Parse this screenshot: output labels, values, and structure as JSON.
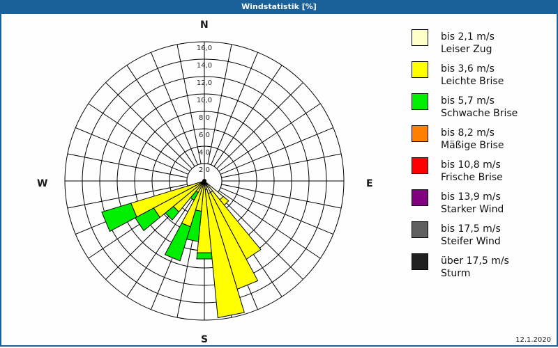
{
  "window": {
    "title": "Windstatistik [%]"
  },
  "footer": {
    "date": "12.1.2020"
  },
  "compass": {
    "n": "N",
    "e": "E",
    "s": "S",
    "w": "W"
  },
  "legend": [
    {
      "range": "bis 2,1 m/s",
      "name": "Leiser Zug",
      "color": "#ffffc8"
    },
    {
      "range": "bis 3,6 m/s",
      "name": "Leichte Brise",
      "color": "#ffff00"
    },
    {
      "range": "bis 5,7 m/s",
      "name": "Schwache Brise",
      "color": "#00ee00"
    },
    {
      "range": "bis 8,2 m/s",
      "name": "Mäßige Brise",
      "color": "#ff8000"
    },
    {
      "range": "bis 10,8 m/s",
      "name": "Frische Brise",
      "color": "#ff0000"
    },
    {
      "range": "bis 13,9 m/s",
      "name": "Starker Wind",
      "color": "#800080"
    },
    {
      "range": "bis 17,5 m/s",
      "name": "Steifer Wind",
      "color": "#606060"
    },
    {
      "range": "über 17,5 m/s",
      "name": "Sturm",
      "color": "#202020"
    }
  ],
  "chart_data": {
    "type": "polar-stacked-bar (wind rose)",
    "title": "Windstatistik [%]",
    "radial_ticks": [
      "2,0",
      "4,0",
      "6,0",
      "8,0",
      "10,0",
      "12,0",
      "14,0",
      "16,0"
    ],
    "radial_range": [
      0,
      16
    ],
    "sectors": 32,
    "sector_width_deg": 11.25,
    "compass_labels": [
      "N",
      "E",
      "S",
      "W"
    ],
    "series": [
      "Leiser Zug",
      "Leichte Brise",
      "Schwache Brise",
      "Mäßige Brise",
      "Frische Brise",
      "Starker Wind",
      "Steifer Wind",
      "Sturm"
    ],
    "petals": [
      {
        "bearing": 135.0,
        "cumulative": {
          "Leiser Zug": 2.8,
          "Leichte Brise": 3.6
        }
      },
      {
        "bearing": 146.25,
        "cumulative": {
          "Leiser Zug": 1.5,
          "Leichte Brise": 10.2
        }
      },
      {
        "bearing": 157.5,
        "cumulative": {
          "Leiser Zug": 1.5,
          "Leichte Brise": 13.0
        }
      },
      {
        "bearing": 168.75,
        "cumulative": {
          "Leiser Zug": 1.0,
          "Leichte Brise": 15.8
        }
      },
      {
        "bearing": 180.0,
        "cumulative": {
          "Leichte Brise": 8.3,
          "Schwache Brise": 9.0
        }
      },
      {
        "bearing": 191.25,
        "cumulative": {
          "Leichte Brise": 3.5,
          "Schwache Brise": 7.0
        }
      },
      {
        "bearing": 202.5,
        "cumulative": {
          "Leichte Brise": 5.5,
          "Schwache Brise": 9.6
        }
      },
      {
        "bearing": 213.75,
        "cumulative": {
          "Leichte Brise": 1.5,
          "Schwache Brise": 2.5
        }
      },
      {
        "bearing": 225.0,
        "cumulative": {
          "Leichte Brise": 4.6,
          "Schwache Brise": 5.8
        }
      },
      {
        "bearing": 236.25,
        "cumulative": {
          "Leichte Brise": 6.6,
          "Schwache Brise": 9.0
        }
      },
      {
        "bearing": 247.5,
        "cumulative": {
          "Leichte Brise": 8.8,
          "Schwache Brise": 12.3
        }
      }
    ],
    "legend_position": "right"
  }
}
